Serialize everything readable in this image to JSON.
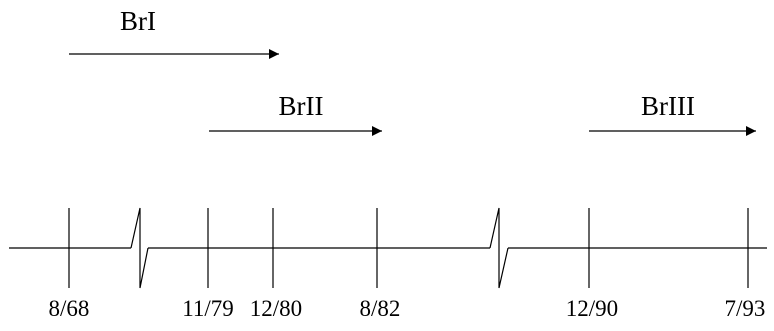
{
  "phases": [
    {
      "label": "BrI"
    },
    {
      "label": "BrII"
    },
    {
      "label": "BrIII"
    }
  ],
  "timeline": {
    "ticks": [
      "8/68",
      "11/79",
      "12/80",
      "8/82",
      "12/90",
      "7/93"
    ]
  }
}
